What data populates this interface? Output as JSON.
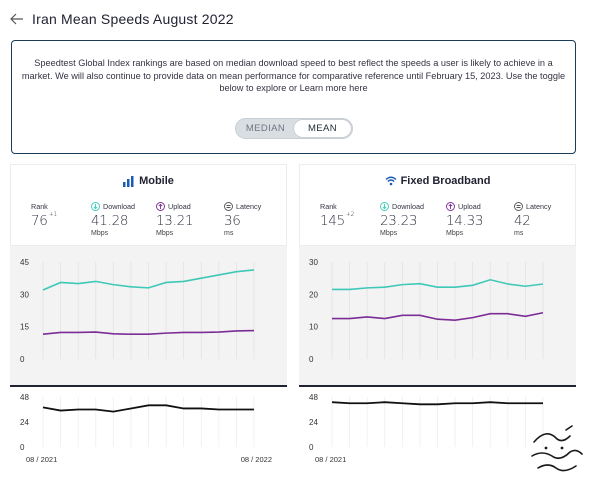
{
  "header": {
    "title": "Iran Mean Speeds August 2022",
    "back_icon": "arrow-left-icon"
  },
  "info": {
    "text": "Speedtest Global Index rankings are based on median download speed to best reflect the speeds a user is likely to achieve in a market. We will also continue to provide data on mean performance for comparative reference until February 15, 2023. Use the toggle below to explore or",
    "link": "Learn more here",
    "toggle": {
      "median": "MEDIAN",
      "mean": "MEAN",
      "selected": "MEAN"
    }
  },
  "colors": {
    "download": "#3fc8b8",
    "upload": "#7b2c96",
    "latency": "#111111",
    "border": "#1b3c57"
  },
  "panels": {
    "mobile": {
      "title": "Mobile",
      "icon": "signal-bars-icon",
      "rank_label": "Rank",
      "rank": "76",
      "rank_change": "+1",
      "download_label": "Download",
      "download": "41.28",
      "download_unit": "Mbps",
      "upload_label": "Upload",
      "upload": "13.21",
      "upload_unit": "Mbps",
      "latency_label": "Latency",
      "latency": "36",
      "latency_unit": "ms"
    },
    "fixed": {
      "title": "Fixed Broadband",
      "icon": "wifi-icon",
      "rank_label": "Rank",
      "rank": "145",
      "rank_change": "+2",
      "download_label": "Download",
      "download": "23.23",
      "download_unit": "Mbps",
      "upload_label": "Upload",
      "upload": "14.33",
      "upload_unit": "Mbps",
      "latency_label": "Latency",
      "latency": "42",
      "latency_unit": "ms"
    }
  },
  "x_labels": {
    "start": "08 / 2021",
    "end": "08 / 2022"
  },
  "chart_data": [
    {
      "type": "line",
      "title": "Mobile",
      "x": [
        "08/2021",
        "09/2021",
        "10/2021",
        "11/2021",
        "12/2021",
        "01/2022",
        "02/2022",
        "03/2022",
        "04/2022",
        "05/2022",
        "06/2022",
        "07/2022",
        "08/2022"
      ],
      "yticks": [
        0,
        15,
        30,
        45
      ],
      "ylim": [
        0,
        45
      ],
      "series": [
        {
          "name": "Download",
          "values": [
            32,
            35.5,
            35,
            36,
            34.5,
            33.5,
            33,
            35.5,
            36,
            37.5,
            39,
            40.5,
            41.3
          ]
        },
        {
          "name": "Upload",
          "values": [
            11.5,
            12.3,
            12.3,
            12.5,
            11.7,
            11.5,
            11.5,
            12,
            12.3,
            12.3,
            12.5,
            13,
            13.2
          ]
        }
      ],
      "latency": {
        "yticks": [
          0,
          24,
          48
        ],
        "values": [
          38,
          35,
          36,
          36,
          34,
          37,
          40,
          40,
          37,
          37,
          36,
          36,
          36
        ]
      }
    },
    {
      "type": "line",
      "title": "Fixed Broadband",
      "x": [
        "08/2021",
        "09/2021",
        "10/2021",
        "11/2021",
        "12/2021",
        "01/2022",
        "02/2022",
        "03/2022",
        "04/2022",
        "05/2022",
        "06/2022",
        "07/2022",
        "08/2022"
      ],
      "yticks": [
        0,
        10,
        20,
        30
      ],
      "ylim": [
        0,
        30
      ],
      "series": [
        {
          "name": "Download",
          "values": [
            21.5,
            21.5,
            22,
            22.2,
            23,
            23.3,
            22.2,
            22.2,
            22.8,
            24.5,
            23.2,
            22.5,
            23.2
          ]
        },
        {
          "name": "Upload",
          "values": [
            12.5,
            12.5,
            13,
            12.5,
            13.5,
            13.5,
            12.3,
            12,
            12.8,
            14,
            14,
            13.2,
            14.3
          ]
        }
      ],
      "latency": {
        "yticks": [
          0,
          24,
          48
        ],
        "values": [
          43,
          42,
          42,
          43,
          42,
          41,
          41,
          42,
          42,
          43,
          42,
          42,
          42
        ]
      }
    }
  ]
}
